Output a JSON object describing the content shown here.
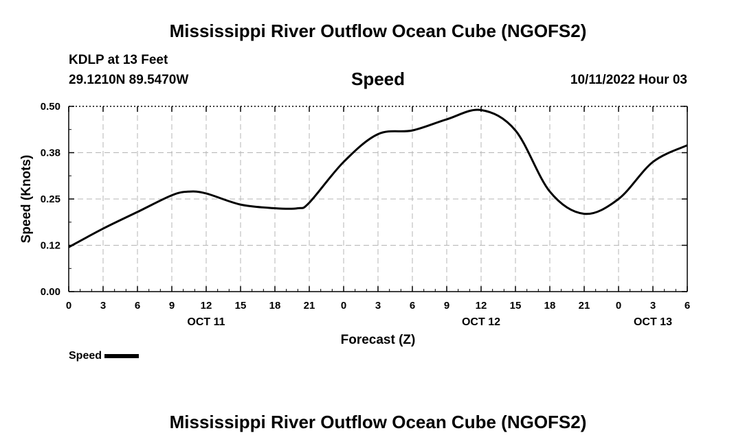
{
  "header": {
    "title": "Mississippi River Outflow Ocean Cube (NGOFS2)",
    "station": "KDLP at 13 Feet",
    "coords": "29.1210N  89.5470W",
    "subtitle": "Speed",
    "datetime": "10/11/2022 Hour 03"
  },
  "footer": {
    "title": "Mississippi River Outflow Ocean Cube (NGOFS2)"
  },
  "chart_data": {
    "type": "line",
    "ylabel": "Speed (Knots)",
    "xlabel": "Forecast (Z)",
    "ylim": [
      0,
      0.5
    ],
    "yticks": [
      "0.00",
      "0.12",
      "0.25",
      "0.38",
      "0.50"
    ],
    "xlim": [
      0,
      54
    ],
    "xticks": [
      "0",
      "3",
      "6",
      "9",
      "12",
      "15",
      "18",
      "21",
      "0",
      "3",
      "6",
      "9",
      "12",
      "15",
      "18",
      "21",
      "0",
      "3",
      "6"
    ],
    "date_labels": [
      {
        "label": "OCT 11",
        "at_hour": 12
      },
      {
        "label": "OCT 12",
        "at_hour": 36
      },
      {
        "label": "OCT 13",
        "at_hour": 51
      }
    ],
    "grid": true,
    "legend": "bottom-left",
    "series": [
      {
        "name": "Speed",
        "color": "#000000",
        "x": [
          0,
          3,
          6,
          9,
          10.5,
          12,
          15,
          18,
          20,
          21,
          24,
          27,
          30,
          33,
          36,
          39,
          42,
          45,
          48,
          51,
          54
        ],
        "values": [
          0.12,
          0.17,
          0.215,
          0.26,
          0.27,
          0.265,
          0.235,
          0.225,
          0.225,
          0.24,
          0.35,
          0.425,
          0.435,
          0.465,
          0.49,
          0.435,
          0.27,
          0.21,
          0.25,
          0.35,
          0.395
        ]
      }
    ]
  }
}
